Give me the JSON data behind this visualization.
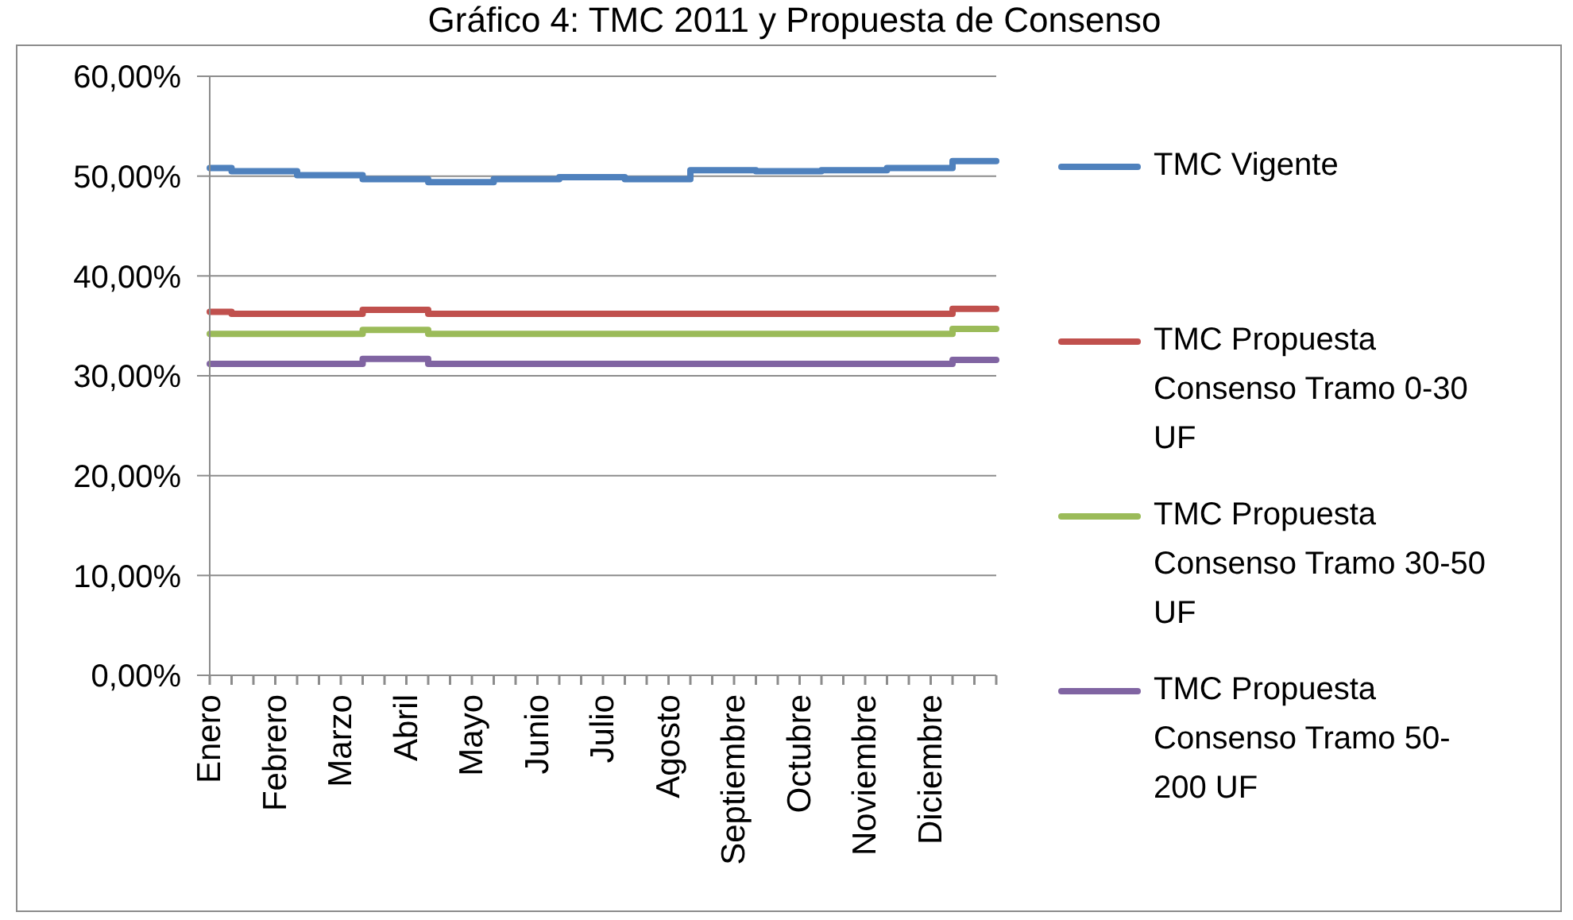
{
  "chart_data": {
    "type": "step",
    "title": "Gráfico 4: TMC 2011 y Propuesta de Consenso",
    "categories": [
      "Enero",
      null,
      null,
      "Febrero",
      null,
      null,
      "Marzo",
      null,
      null,
      "Abril",
      null,
      null,
      "Mayo",
      null,
      null,
      "Junio",
      null,
      null,
      "Julio",
      null,
      null,
      "Agosto",
      null,
      null,
      "Septiembre",
      null,
      null,
      "Octubre",
      null,
      null,
      "Noviembre",
      null,
      null,
      "Diciembre",
      null,
      null,
      null
    ],
    "series": [
      {
        "name": "TMC Vigente",
        "color": "#4f81bd",
        "values": [
          50.8,
          50.5,
          50.5,
          50.5,
          50.1,
          50.1,
          50.1,
          49.7,
          49.7,
          49.7,
          49.4,
          49.4,
          49.4,
          49.7,
          49.7,
          49.7,
          49.9,
          49.9,
          49.9,
          49.7,
          49.7,
          49.7,
          50.6,
          50.6,
          50.6,
          50.5,
          50.5,
          50.5,
          50.6,
          50.6,
          50.6,
          50.8,
          50.8,
          50.8,
          51.5,
          51.5,
          51.5
        ]
      },
      {
        "name": "TMC Propuesta Consenso Tramo 0-30 UF",
        "color": "#c0504d",
        "values": [
          36.4,
          36.2,
          36.2,
          36.2,
          36.2,
          36.2,
          36.2,
          36.6,
          36.6,
          36.6,
          36.2,
          36.2,
          36.2,
          36.2,
          36.2,
          36.2,
          36.2,
          36.2,
          36.2,
          36.2,
          36.2,
          36.2,
          36.2,
          36.2,
          36.2,
          36.2,
          36.2,
          36.2,
          36.2,
          36.2,
          36.2,
          36.2,
          36.2,
          36.2,
          36.7,
          36.7,
          36.7
        ]
      },
      {
        "name": "TMC Propuesta Consenso Tramo 30-50 UF",
        "color": "#9bbb59",
        "values": [
          34.2,
          34.2,
          34.2,
          34.2,
          34.2,
          34.2,
          34.2,
          34.6,
          34.6,
          34.6,
          34.2,
          34.2,
          34.2,
          34.2,
          34.2,
          34.2,
          34.2,
          34.2,
          34.2,
          34.2,
          34.2,
          34.2,
          34.2,
          34.2,
          34.2,
          34.2,
          34.2,
          34.2,
          34.2,
          34.2,
          34.2,
          34.2,
          34.2,
          34.2,
          34.7,
          34.7,
          34.7
        ]
      },
      {
        "name": "TMC Propuesta Consenso Tramo 50-200 UF",
        "color": "#8064a2",
        "values": [
          31.2,
          31.2,
          31.2,
          31.2,
          31.2,
          31.2,
          31.2,
          31.7,
          31.7,
          31.7,
          31.2,
          31.2,
          31.2,
          31.2,
          31.2,
          31.2,
          31.2,
          31.2,
          31.2,
          31.2,
          31.2,
          31.2,
          31.2,
          31.2,
          31.2,
          31.2,
          31.2,
          31.2,
          31.2,
          31.2,
          31.2,
          31.2,
          31.2,
          31.2,
          31.6,
          31.6,
          31.6
        ]
      }
    ],
    "ylim": [
      0,
      60
    ],
    "yticks": [
      {
        "value": 0,
        "label": "0,00%"
      },
      {
        "value": 10,
        "label": "10,00%"
      },
      {
        "value": 20,
        "label": "20,00%"
      },
      {
        "value": 30,
        "label": "30,00%"
      },
      {
        "value": 40,
        "label": "40,00%"
      },
      {
        "value": 50,
        "label": "50,00%"
      },
      {
        "value": 60,
        "label": "60,00%"
      }
    ],
    "grid": "y",
    "legend": "right"
  }
}
